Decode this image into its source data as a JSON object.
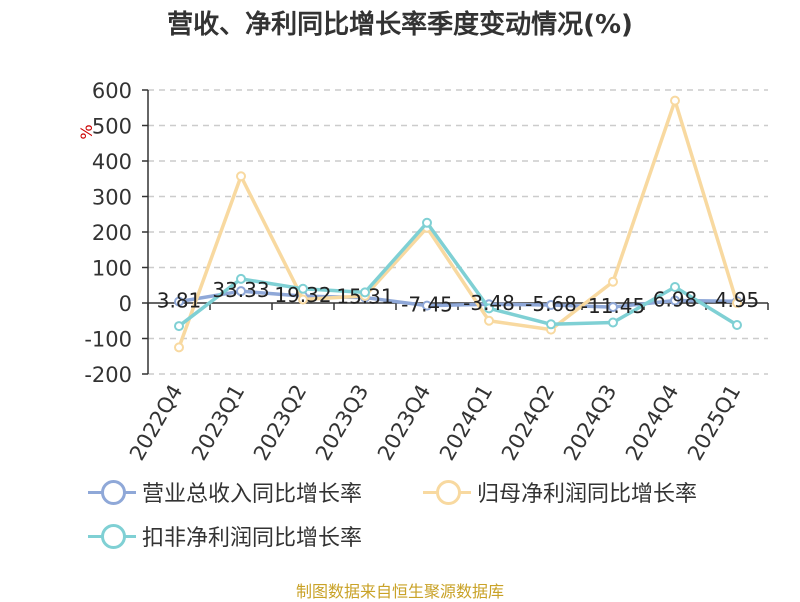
{
  "chart_data": {
    "type": "line",
    "title": "营收、净利同比增长率季度变动情况(%)",
    "ylabel": "%",
    "ylim": [
      -200,
      600
    ],
    "yticks": [
      600,
      500,
      400,
      300,
      200,
      100,
      0,
      -100,
      -200
    ],
    "grid": true,
    "legend_position": "bottom",
    "categories": [
      "2022Q4",
      "2023Q1",
      "2023Q2",
      "2023Q3",
      "2023Q4",
      "2024Q1",
      "2024Q2",
      "2024Q3",
      "2024Q4",
      "2025Q1"
    ],
    "series": [
      {
        "name": "营业总收入同比增长率",
        "color": "#8fa8d8",
        "values": [
          3.81,
          33.33,
          19.32,
          15.31,
          -7.45,
          -3.48,
          -5.68,
          -11.45,
          6.98,
          4.95
        ],
        "labels": [
          "3.81",
          "33.33",
          "19.32",
          "15.31",
          "-7.45",
          "-3.48",
          "-5.68",
          "-11.45",
          "6.98",
          "4.95"
        ]
      },
      {
        "name": "归母净利润同比增长率",
        "color": "#f8d9a0",
        "values": [
          -125,
          357,
          10,
          20,
          212,
          -50,
          -75,
          60,
          570,
          0
        ]
      },
      {
        "name": "扣非净利润同比增长率",
        "color": "#7fd0d4",
        "values": [
          -65,
          68,
          40,
          30,
          226,
          -15,
          -60,
          -55,
          45,
          -62
        ]
      }
    ]
  },
  "source_text": "制图数据来自恒生聚源数据库"
}
